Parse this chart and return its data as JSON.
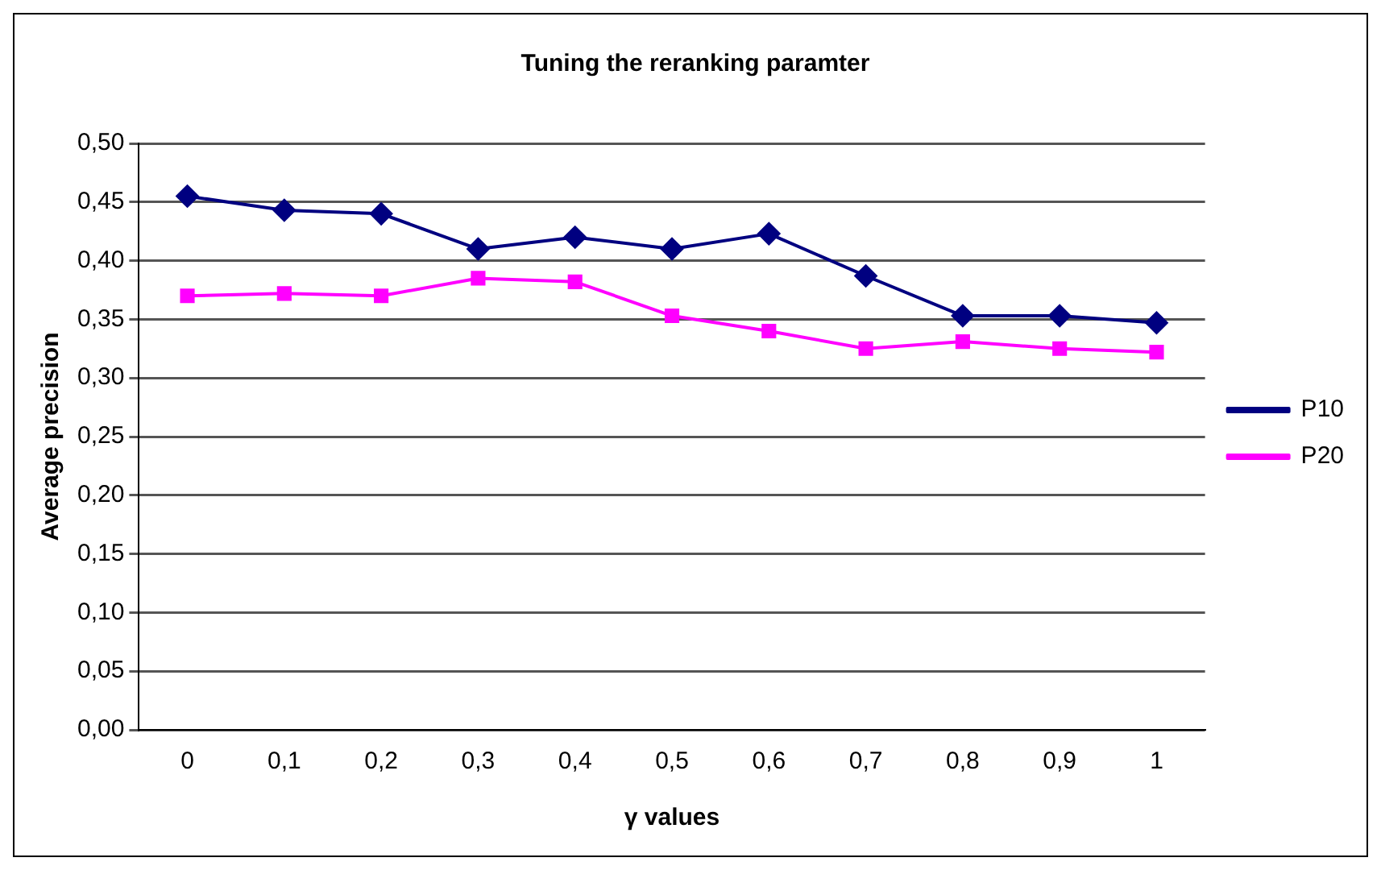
{
  "chart_data": {
    "type": "line",
    "title": "Tuning the reranking paramter",
    "xlabel": "γ values",
    "ylabel": "Average precision",
    "categories": [
      "0",
      "0,1",
      "0,2",
      "0,3",
      "0,4",
      "0,5",
      "0,6",
      "0,7",
      "0,8",
      "0,9",
      "1"
    ],
    "series": [
      {
        "name": "P10",
        "color": "#000080",
        "marker": "diamond",
        "values": [
          0.455,
          0.443,
          0.44,
          0.41,
          0.42,
          0.41,
          0.423,
          0.387,
          0.353,
          0.353,
          0.347
        ]
      },
      {
        "name": "P20",
        "color": "#ff00ff",
        "marker": "square",
        "values": [
          0.37,
          0.372,
          0.37,
          0.385,
          0.382,
          0.353,
          0.34,
          0.325,
          0.331,
          0.325,
          0.322
        ]
      }
    ],
    "ylim": [
      0,
      0.5
    ],
    "yticks": [
      {
        "value": 0,
        "label": "0,00"
      },
      {
        "value": 0.05,
        "label": "0,05"
      },
      {
        "value": 0.1,
        "label": "0,10"
      },
      {
        "value": 0.15,
        "label": "0,15"
      },
      {
        "value": 0.2,
        "label": "0,20"
      },
      {
        "value": 0.25,
        "label": "0,25"
      },
      {
        "value": 0.3,
        "label": "0,30"
      },
      {
        "value": 0.35,
        "label": "0,35"
      },
      {
        "value": 0.4,
        "label": "0,40"
      },
      {
        "value": 0.45,
        "label": "0,45"
      },
      {
        "value": 0.5,
        "label": "0,50"
      }
    ],
    "grid": "y",
    "legend": "right",
    "line_style": "solid"
  }
}
